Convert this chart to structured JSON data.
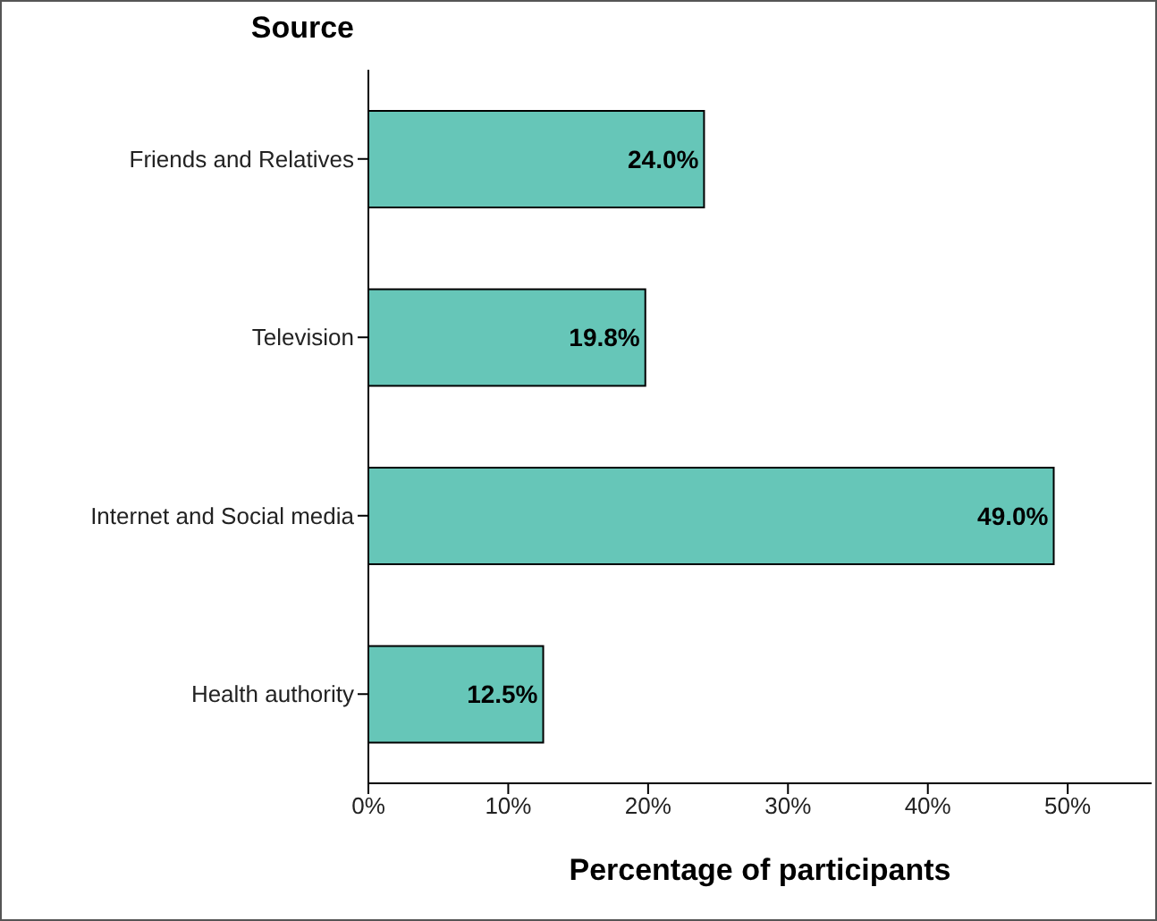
{
  "chart_data": {
    "type": "bar",
    "orientation": "horizontal",
    "ylabel": "Source",
    "xlabel": "Percentage of participants",
    "categories": [
      "Friends and Relatives",
      "Television",
      "Internet and Social media",
      "Health authority"
    ],
    "values": [
      24.0,
      19.8,
      49.0,
      12.5
    ],
    "value_labels": [
      "24.0%",
      "19.8%",
      "49.0%",
      "12.5%"
    ],
    "color": "#66c6b8",
    "xlim": [
      0,
      56
    ],
    "xticks": [
      {
        "value": 0,
        "label": "0%"
      },
      {
        "value": 10,
        "label": "10%"
      },
      {
        "value": 20,
        "label": "20%"
      },
      {
        "value": 30,
        "label": "30%"
      },
      {
        "value": 40,
        "label": "40%"
      },
      {
        "value": 50,
        "label": "50%"
      }
    ],
    "grid": false,
    "legend": false
  }
}
